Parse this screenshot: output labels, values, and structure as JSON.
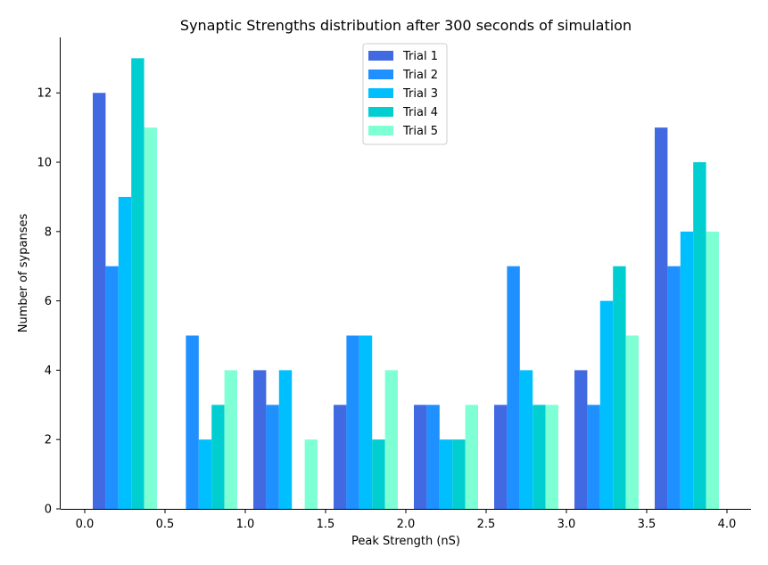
{
  "chart_data": {
    "type": "bar",
    "title": "Synaptic Strengths distribution after 300 seconds of simulation",
    "xlabel": "Peak Strength (nS)",
    "ylabel": "Number of sypanses",
    "xlim": [
      -0.15,
      4.15
    ],
    "ylim": [
      0,
      13.6
    ],
    "xticks": [
      0.0,
      0.5,
      1.0,
      1.5,
      2.0,
      2.5,
      3.0,
      3.5,
      4.0
    ],
    "xtick_labels": [
      "0.0",
      "0.5",
      "1.0",
      "1.5",
      "2.0",
      "2.5",
      "3.0",
      "3.5",
      "4.0"
    ],
    "yticks": [
      0,
      2,
      4,
      6,
      8,
      10,
      12
    ],
    "ytick_labels": [
      "0",
      "2",
      "4",
      "6",
      "8",
      "10",
      "12"
    ],
    "grid": false,
    "legend_position": "top-center",
    "bin_starts": [
      0.05,
      0.55,
      1.05,
      1.55,
      2.05,
      2.55,
      3.05,
      3.55
    ],
    "bin_width": 0.4,
    "series": [
      {
        "name": "Trial 1",
        "color": "#4169e1",
        "values": [
          12,
          0,
          4,
          3,
          3,
          3,
          4,
          11
        ]
      },
      {
        "name": "Trial 2",
        "color": "#1e90ff",
        "values": [
          7,
          5,
          3,
          5,
          3,
          7,
          3,
          7
        ]
      },
      {
        "name": "Trial 3",
        "color": "#00bfff",
        "values": [
          9,
          2,
          4,
          5,
          2,
          4,
          6,
          8
        ]
      },
      {
        "name": "Trial 4",
        "color": "#00ced1",
        "values": [
          13,
          3,
          0,
          2,
          2,
          3,
          7,
          10
        ]
      },
      {
        "name": "Trial 5",
        "color": "#7fffd4",
        "values": [
          11,
          4,
          2,
          4,
          3,
          3,
          5,
          8
        ]
      }
    ]
  }
}
